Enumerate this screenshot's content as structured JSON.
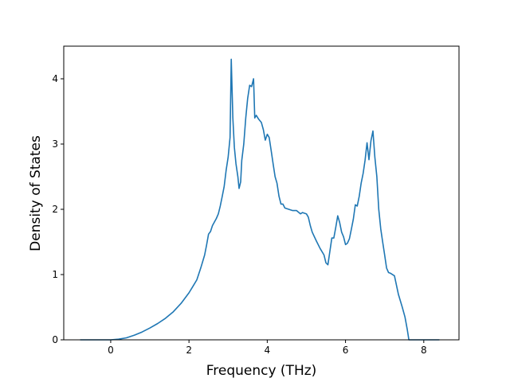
{
  "chart_data": {
    "type": "line",
    "title": "",
    "xlabel": "Frequency (THz)",
    "ylabel": "Density of States",
    "xlim": [
      -1.2,
      8.9
    ],
    "ylim": [
      0,
      4.5
    ],
    "xticks": [
      0,
      2,
      4,
      6,
      8
    ],
    "yticks": [
      0,
      1,
      2,
      3,
      4
    ],
    "grid": false,
    "legend": "none",
    "series": [
      {
        "name": "",
        "color": "#1f77b4",
        "points": [
          [
            -0.78,
            0.0
          ],
          [
            -0.4,
            0.0
          ],
          [
            0.0,
            0.0
          ],
          [
            0.2,
            0.01
          ],
          [
            0.4,
            0.03
          ],
          [
            0.6,
            0.07
          ],
          [
            0.8,
            0.12
          ],
          [
            1.0,
            0.18
          ],
          [
            1.2,
            0.25
          ],
          [
            1.4,
            0.33
          ],
          [
            1.6,
            0.43
          ],
          [
            1.8,
            0.56
          ],
          [
            2.0,
            0.72
          ],
          [
            2.1,
            0.82
          ],
          [
            2.2,
            0.92
          ],
          [
            2.3,
            1.1
          ],
          [
            2.4,
            1.3
          ],
          [
            2.45,
            1.45
          ],
          [
            2.5,
            1.62
          ],
          [
            2.55,
            1.66
          ],
          [
            2.6,
            1.75
          ],
          [
            2.7,
            1.86
          ],
          [
            2.75,
            1.93
          ],
          [
            2.8,
            2.05
          ],
          [
            2.85,
            2.2
          ],
          [
            2.9,
            2.35
          ],
          [
            2.95,
            2.6
          ],
          [
            3.0,
            2.8
          ],
          [
            3.05,
            3.1
          ],
          [
            3.08,
            4.3
          ],
          [
            3.12,
            3.4
          ],
          [
            3.16,
            2.95
          ],
          [
            3.2,
            2.7
          ],
          [
            3.25,
            2.5
          ],
          [
            3.28,
            2.32
          ],
          [
            3.32,
            2.42
          ],
          [
            3.35,
            2.75
          ],
          [
            3.4,
            3.0
          ],
          [
            3.45,
            3.4
          ],
          [
            3.5,
            3.7
          ],
          [
            3.55,
            3.9
          ],
          [
            3.6,
            3.88
          ],
          [
            3.65,
            4.0
          ],
          [
            3.68,
            3.4
          ],
          [
            3.72,
            3.44
          ],
          [
            3.78,
            3.38
          ],
          [
            3.85,
            3.33
          ],
          [
            3.9,
            3.22
          ],
          [
            3.95,
            3.06
          ],
          [
            4.0,
            3.15
          ],
          [
            4.05,
            3.1
          ],
          [
            4.1,
            2.9
          ],
          [
            4.15,
            2.7
          ],
          [
            4.2,
            2.5
          ],
          [
            4.25,
            2.4
          ],
          [
            4.3,
            2.2
          ],
          [
            4.35,
            2.08
          ],
          [
            4.4,
            2.08
          ],
          [
            4.45,
            2.02
          ],
          [
            4.55,
            2.0
          ],
          [
            4.65,
            1.98
          ],
          [
            4.75,
            1.98
          ],
          [
            4.85,
            1.93
          ],
          [
            4.9,
            1.95
          ],
          [
            5.0,
            1.93
          ],
          [
            5.05,
            1.88
          ],
          [
            5.1,
            1.75
          ],
          [
            5.15,
            1.65
          ],
          [
            5.25,
            1.52
          ],
          [
            5.35,
            1.4
          ],
          [
            5.45,
            1.3
          ],
          [
            5.5,
            1.18
          ],
          [
            5.55,
            1.15
          ],
          [
            5.6,
            1.35
          ],
          [
            5.65,
            1.56
          ],
          [
            5.7,
            1.56
          ],
          [
            5.75,
            1.72
          ],
          [
            5.8,
            1.9
          ],
          [
            5.85,
            1.8
          ],
          [
            5.9,
            1.65
          ],
          [
            5.95,
            1.58
          ],
          [
            6.0,
            1.46
          ],
          [
            6.05,
            1.48
          ],
          [
            6.1,
            1.55
          ],
          [
            6.15,
            1.7
          ],
          [
            6.2,
            1.85
          ],
          [
            6.25,
            2.07
          ],
          [
            6.3,
            2.05
          ],
          [
            6.35,
            2.2
          ],
          [
            6.4,
            2.4
          ],
          [
            6.45,
            2.55
          ],
          [
            6.5,
            2.75
          ],
          [
            6.55,
            3.02
          ],
          [
            6.6,
            2.76
          ],
          [
            6.65,
            3.05
          ],
          [
            6.7,
            3.2
          ],
          [
            6.75,
            2.8
          ],
          [
            6.8,
            2.5
          ],
          [
            6.85,
            2.0
          ],
          [
            6.9,
            1.7
          ],
          [
            6.95,
            1.5
          ],
          [
            7.0,
            1.3
          ],
          [
            7.05,
            1.1
          ],
          [
            7.1,
            1.03
          ],
          [
            7.15,
            1.02
          ],
          [
            7.25,
            0.98
          ],
          [
            7.35,
            0.7
          ],
          [
            7.45,
            0.5
          ],
          [
            7.52,
            0.35
          ],
          [
            7.58,
            0.15
          ],
          [
            7.62,
            0.0
          ],
          [
            8.0,
            0.0
          ],
          [
            8.4,
            0.0
          ]
        ]
      }
    ]
  }
}
